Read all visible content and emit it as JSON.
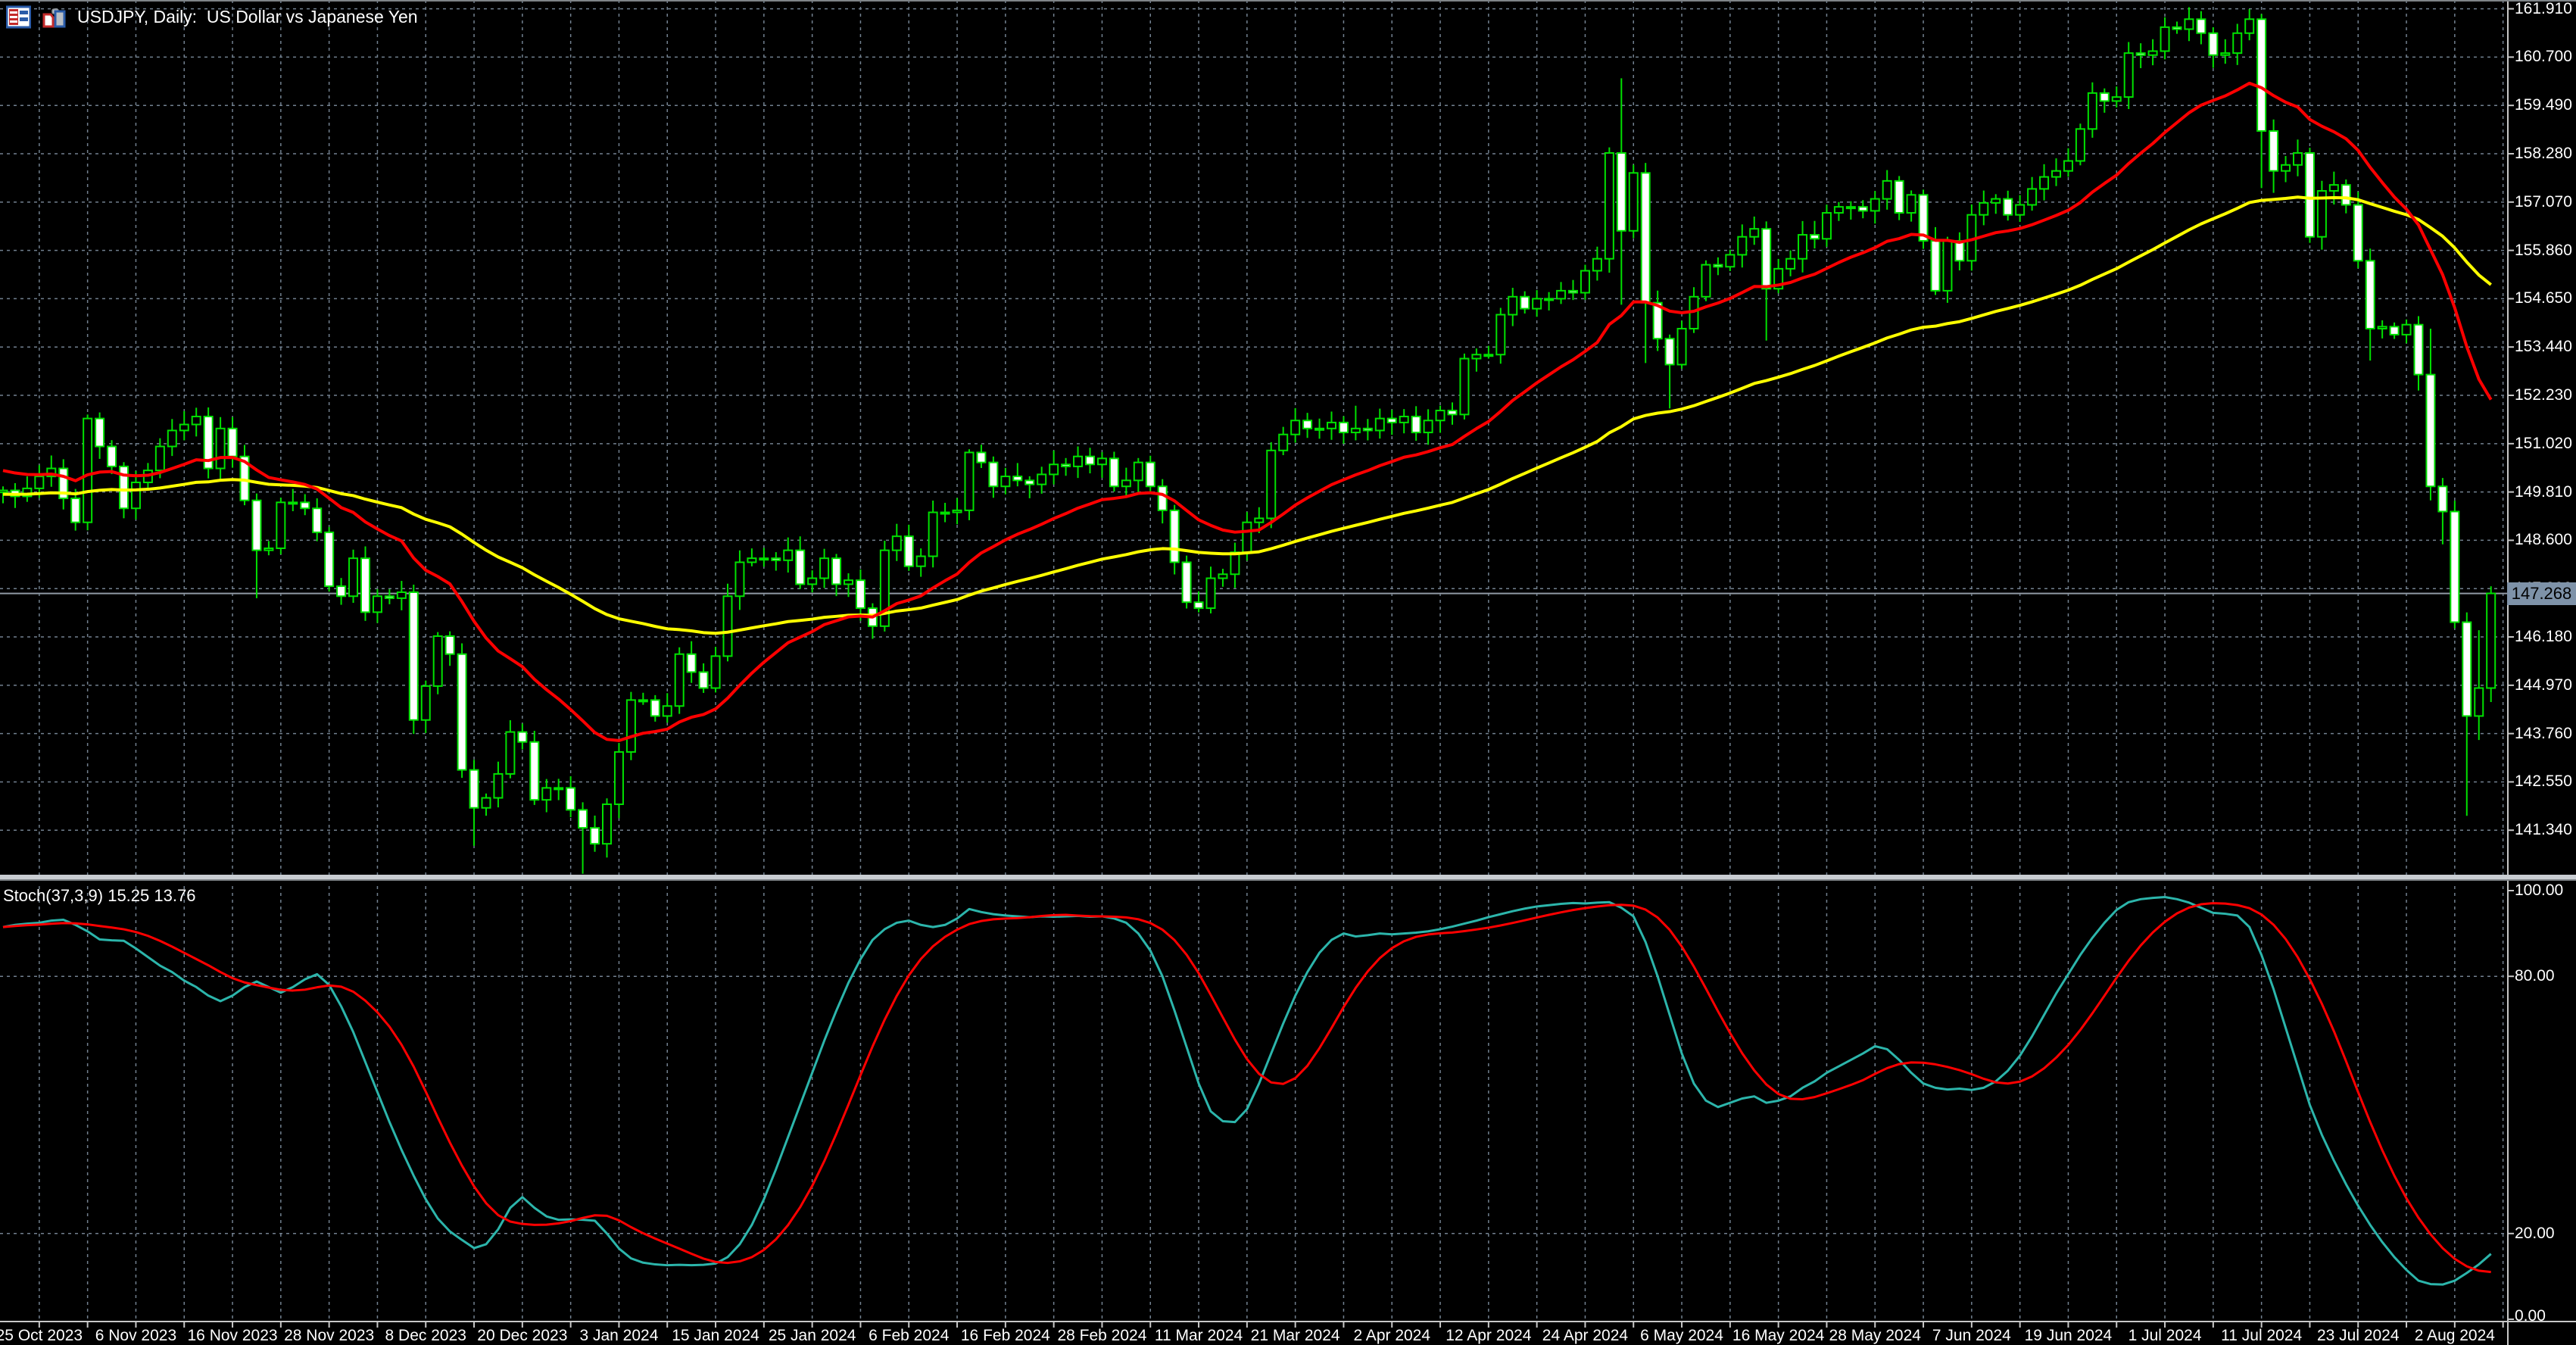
{
  "meta": {
    "title": "USDJPY, Daily:  US Dollar vs Japanese Yen",
    "platform_icons": [
      "quotes-window-icon",
      "chart-window-icon"
    ]
  },
  "colors": {
    "background": "#000000",
    "grid": "#72808f",
    "candle_outline": "#00e000",
    "bull_body": "#000000",
    "bear_body": "#ffffff",
    "ma_fast": "#ff0000",
    "ma_slow": "#ffff00",
    "stoch_k": "#2cb5ab",
    "stoch_d": "#ff0000",
    "axis_line": "#c8c8c8",
    "bid_line": "#9099a4",
    "price_tag_bg": "#7e92a8",
    "text": "#ffffff"
  },
  "chart_data": {
    "type": "candlestick",
    "symbol": "USDJPY",
    "timeframe": "Daily",
    "description": "US Dollar vs Japanese Yen",
    "current_price": "147.268",
    "price_axis": {
      "labels": [
        "161.910",
        "160.700",
        "159.490",
        "158.280",
        "157.070",
        "155.860",
        "154.650",
        "153.440",
        "152.230",
        "151.020",
        "149.810",
        "148.600",
        "147.390",
        "146.180",
        "144.970",
        "143.760",
        "142.550",
        "141.340"
      ],
      "step": 1.21
    },
    "date_axis": {
      "labels": [
        "25 Oct 2023",
        "6 Nov 2023",
        "16 Nov 2023",
        "28 Nov 2023",
        "8 Dec 2023",
        "20 Dec 2023",
        "3 Jan 2024",
        "15 Jan 2024",
        "25 Jan 2024",
        "6 Feb 2024",
        "16 Feb 2024",
        "28 Feb 2024",
        "11 Mar 2024",
        "21 Mar 2024",
        "2 Apr 2024",
        "12 Apr 2024",
        "24 Apr 2024",
        "6 May 2024",
        "16 May 2024",
        "28 May 2024",
        "7 Jun 2024",
        "19 Jun 2024",
        "1 Jul 2024",
        "11 Jul 2024",
        "23 Jul 2024",
        "2 Aug 2024"
      ],
      "bars_per_label": 8,
      "first_label_bar": 3
    },
    "candles": {
      "first_open": 149.8,
      "closes": [
        149.85,
        149.7,
        149.9,
        150.2,
        150.4,
        149.65,
        149.05,
        151.65,
        150.95,
        150.45,
        149.4,
        150.05,
        150.35,
        150.95,
        151.35,
        151.5,
        151.7,
        150.4,
        151.4,
        150.7,
        149.6,
        148.35,
        148.4,
        149.55,
        149.55,
        149.4,
        148.8,
        147.45,
        147.2,
        148.15,
        146.8,
        147.2,
        147.15,
        147.3,
        144.1,
        144.95,
        146.2,
        145.75,
        142.85,
        141.9,
        142.15,
        142.75,
        143.8,
        143.55,
        142.1,
        142.4,
        142.4,
        141.85,
        141.4,
        141.0,
        141.99,
        143.3,
        144.6,
        144.6,
        144.2,
        144.45,
        145.75,
        145.3,
        144.9,
        145.7,
        147.2,
        148.05,
        148.15,
        148.15,
        148.1,
        148.35,
        147.5,
        147.65,
        148.15,
        147.5,
        147.6,
        146.9,
        146.45,
        148.35,
        148.7,
        147.95,
        148.2,
        149.3,
        149.3,
        149.35,
        150.8,
        150.55,
        149.95,
        150.2,
        150.1,
        150.0,
        150.25,
        150.5,
        150.45,
        150.7,
        150.5,
        150.65,
        149.95,
        150.1,
        150.55,
        149.95,
        149.35,
        148.05,
        147.05,
        146.9,
        147.65,
        147.75,
        148.3,
        149.05,
        149.15,
        150.85,
        151.25,
        151.6,
        151.4,
        151.4,
        151.55,
        151.3,
        151.4,
        151.35,
        151.65,
        151.55,
        151.7,
        151.3,
        151.6,
        151.85,
        151.75,
        153.15,
        153.25,
        153.25,
        154.25,
        154.7,
        154.4,
        154.65,
        154.65,
        154.85,
        154.8,
        155.35,
        155.65,
        158.3,
        156.35,
        157.8,
        154.55,
        153.65,
        153.0,
        153.9,
        154.7,
        155.5,
        155.45,
        155.75,
        156.2,
        156.4,
        154.9,
        155.4,
        155.65,
        156.25,
        156.15,
        156.8,
        156.95,
        156.95,
        156.85,
        157.15,
        157.6,
        156.8,
        157.25,
        156.1,
        154.85,
        156.1,
        155.6,
        156.75,
        157.05,
        157.15,
        156.75,
        157.0,
        157.4,
        157.7,
        157.85,
        158.1,
        158.9,
        159.8,
        159.6,
        159.7,
        160.8,
        160.75,
        160.85,
        161.45,
        161.4,
        161.65,
        161.3,
        160.75,
        160.8,
        161.3,
        161.65,
        158.85,
        157.85,
        158.0,
        158.3,
        156.2,
        157.35,
        157.5,
        157.0,
        155.6,
        153.9,
        153.95,
        153.75,
        154.0,
        152.75,
        149.95,
        149.32,
        146.55,
        144.2,
        144.9,
        147.27
      ],
      "wick_overrides": {
        "7": {
          "h": 151.75,
          "l": 148.85
        },
        "16": {
          "h": 151.92,
          "l": 151.2
        },
        "17": {
          "l": 150.15
        },
        "21": {
          "l": 147.15
        },
        "34": {
          "l": 143.75
        },
        "38": {
          "l": 142.65
        },
        "39": {
          "l": 140.95
        },
        "48": {
          "l": 140.25
        },
        "49": {
          "l": 140.8
        },
        "80": {
          "h": 150.88
        },
        "112": {
          "h": 151.97
        },
        "133": {
          "h": 158.44,
          "l": 155.3
        },
        "134": {
          "h": 160.17,
          "l": 154.5
        },
        "136": {
          "h": 158.05,
          "l": 153.04
        },
        "138": {
          "l": 151.9
        },
        "146": {
          "l": 153.6
        },
        "181": {
          "h": 161.95
        },
        "187": {
          "h": 161.78,
          "l": 157.42
        },
        "188": {
          "l": 157.3
        },
        "191": {
          "l": 156.05
        },
        "196": {
          "l": 153.1
        },
        "200": {
          "l": 152.35
        },
        "201": {
          "h": 153.9,
          "l": 149.6
        },
        "202": {
          "l": 148.5
        },
        "203": {
          "l": 146.4
        },
        "204": {
          "l": 141.7
        },
        "205": {
          "h": 146.35,
          "l": 143.6
        },
        "206": {
          "h": 147.45,
          "l": 144.55
        }
      }
    },
    "indicators": {
      "ma_fast": {
        "name": "MA fast (red)",
        "period": 20,
        "method": "ema",
        "seed": 150.4,
        "color": "#ff0000"
      },
      "ma_slow": {
        "name": "MA slow (yellow)",
        "period": 65,
        "method": "ema",
        "seed": 149.75,
        "color": "#ffff00"
      }
    },
    "stochastic": {
      "label": "Stoch(37,3,9)",
      "k_value": "15.25",
      "d_value": "13.76",
      "axis_labels": [
        {
          "text": "100.00",
          "v": 100
        },
        {
          "text": "80.00",
          "v": 80
        },
        {
          "text": "20.00",
          "v": 20
        },
        {
          "text": "0.00",
          "v": 0
        }
      ],
      "levels": [
        80,
        20
      ],
      "d_period": 9,
      "k": [
        91.5,
        92.0,
        92.3,
        92.5,
        93.0,
        93.2,
        92.0,
        90.5,
        88.6,
        88.4,
        88.3,
        86.5,
        84.5,
        82.5,
        81.0,
        79.0,
        77.5,
        75.5,
        74.2,
        75.5,
        77.5,
        78.8,
        77.5,
        76.2,
        77.5,
        79.3,
        80.5,
        78.0,
        73.0,
        67.0,
        60.0,
        53.0,
        46.0,
        39.5,
        33.5,
        28.0,
        23.5,
        20.5,
        18.5,
        16.6,
        17.5,
        21.0,
        26.0,
        28.5,
        26.0,
        24.0,
        23.2,
        23.3,
        23.2,
        23.0,
        20.0,
        16.5,
        14.2,
        13.2,
        12.8,
        12.6,
        12.7,
        12.6,
        12.7,
        13.0,
        14.5,
        17.5,
        22.0,
        28.0,
        35.0,
        42.5,
        50.0,
        57.5,
        65.0,
        72.0,
        78.5,
        84.0,
        88.5,
        91.0,
        92.5,
        93.0,
        92.0,
        91.5,
        92.0,
        93.5,
        95.7,
        95.0,
        94.5,
        94.2,
        94.0,
        93.8,
        94.0,
        93.9,
        94.0,
        94.1,
        93.9,
        94.0,
        93.5,
        92.5,
        90.0,
        86.0,
        80.0,
        72.0,
        63.5,
        55.0,
        48.5,
        46.2,
        46.0,
        49.0,
        55.0,
        62.0,
        69.0,
        75.5,
        81.0,
        85.5,
        88.5,
        90.0,
        89.3,
        89.6,
        90.0,
        89.8,
        90.0,
        90.2,
        90.5,
        91.0,
        91.6,
        92.3,
        93.0,
        93.8,
        94.5,
        95.2,
        95.8,
        96.3,
        96.6,
        96.9,
        97.1,
        97.0,
        97.2,
        97.3,
        96.0,
        94.0,
        88.0,
        80.0,
        71.0,
        62.0,
        55.0,
        51.0,
        49.5,
        50.5,
        51.5,
        52.0,
        50.5,
        51.0,
        52.0,
        54.0,
        55.5,
        57.5,
        59.0,
        60.5,
        62.0,
        63.7,
        63.0,
        60.5,
        57.5,
        55.0,
        54.0,
        53.6,
        53.8,
        53.5,
        54.0,
        55.5,
        58.0,
        61.5,
        66.0,
        71.0,
        76.0,
        80.5,
        85.0,
        89.0,
        92.5,
        95.5,
        97.3,
        98.0,
        98.3,
        98.5,
        98.0,
        97.2,
        96.0,
        94.8,
        94.6,
        94.2,
        91.5,
        85.0,
        77.0,
        68.0,
        59.0,
        50.0,
        43.0,
        37.0,
        31.5,
        26.5,
        22.0,
        18.0,
        14.5,
        11.5,
        9.0,
        8.2,
        8.1,
        9.0,
        10.8,
        12.8,
        15.25
      ]
    }
  }
}
